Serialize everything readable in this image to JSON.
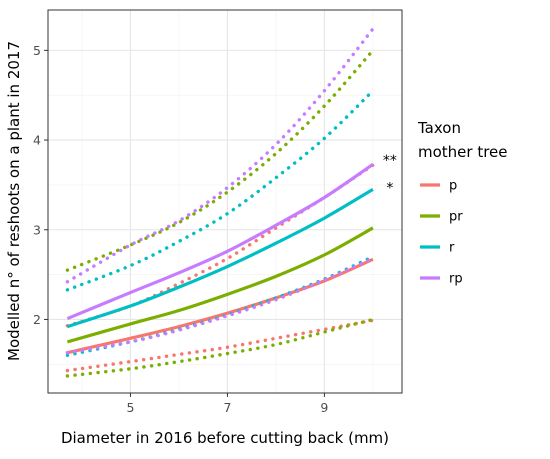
{
  "chart_data": {
    "type": "line",
    "xlabel": "Diameter in 2016 before cutting back (mm)",
    "ylabel": "Modelled n° of reshoots on a plant in 2017",
    "xlim": [
      3.3,
      10.6
    ],
    "ylim": [
      1.18,
      5.45
    ],
    "xticks": [
      5,
      7,
      9
    ],
    "yticks": [
      2,
      3,
      4,
      5
    ],
    "x_minor": [
      4,
      6,
      8,
      10
    ],
    "y_minor": [
      1.5,
      2.5,
      3.5,
      4.5
    ],
    "grid": true,
    "legend": {
      "title_lines": [
        "Taxon",
        "mother tree"
      ],
      "placement": "right"
    },
    "series": [
      {
        "name": "p",
        "color": "#F8766D",
        "fit": {
          "x": [
            3.7,
            5,
            6,
            7,
            8,
            9,
            10
          ],
          "y": [
            1.63,
            1.79,
            1.92,
            2.07,
            2.24,
            2.43,
            2.67
          ]
        },
        "upper": {
          "x": [
            3.7,
            5,
            6,
            7,
            8,
            9,
            10
          ],
          "y": [
            1.93,
            2.15,
            2.4,
            2.68,
            3.02,
            3.36,
            3.72
          ]
        },
        "lower": {
          "x": [
            3.7,
            5,
            6,
            7,
            8,
            9,
            10
          ],
          "y": [
            1.43,
            1.53,
            1.61,
            1.69,
            1.79,
            1.89,
            1.99
          ]
        }
      },
      {
        "name": "pr",
        "color": "#7CAE00",
        "fit": {
          "x": [
            3.7,
            5,
            6,
            7,
            8,
            9,
            10
          ],
          "y": [
            1.75,
            1.95,
            2.1,
            2.28,
            2.48,
            2.72,
            3.02
          ]
        },
        "upper": {
          "x": [
            3.7,
            5,
            6,
            7,
            8,
            9,
            10
          ],
          "y": [
            2.55,
            2.83,
            3.08,
            3.42,
            3.85,
            4.38,
            5.0
          ]
        },
        "lower": {
          "x": [
            3.7,
            5,
            6,
            7,
            8,
            9,
            10
          ],
          "y": [
            1.37,
            1.45,
            1.53,
            1.62,
            1.72,
            1.86,
            2.0
          ]
        }
      },
      {
        "name": "r",
        "color": "#00BFC4",
        "fit": {
          "x": [
            3.7,
            5,
            6,
            7,
            8,
            9,
            10
          ],
          "y": [
            1.92,
            2.15,
            2.36,
            2.59,
            2.85,
            3.13,
            3.45
          ]
        },
        "upper": {
          "x": [
            3.7,
            5,
            6,
            7,
            8,
            9,
            10
          ],
          "y": [
            2.33,
            2.6,
            2.87,
            3.18,
            3.58,
            4.02,
            4.55
          ]
        },
        "lower": {
          "x": [
            3.7,
            5,
            6,
            7,
            8,
            9,
            10
          ],
          "y": [
            1.6,
            1.75,
            1.89,
            2.05,
            2.24,
            2.45,
            2.7
          ]
        }
      },
      {
        "name": "rp",
        "color": "#C77CFF",
        "fit": {
          "x": [
            3.7,
            5,
            6,
            7,
            8,
            9,
            10
          ],
          "y": [
            2.01,
            2.3,
            2.52,
            2.76,
            3.05,
            3.36,
            3.73
          ]
        },
        "upper": {
          "x": [
            3.7,
            5,
            6,
            7,
            8,
            9,
            10
          ],
          "y": [
            2.42,
            2.83,
            3.1,
            3.47,
            3.95,
            4.55,
            5.24
          ]
        },
        "lower": {
          "x": [
            3.7,
            5,
            6,
            7,
            8,
            9,
            10
          ],
          "y": [
            1.63,
            1.75,
            1.88,
            2.04,
            2.22,
            2.44,
            2.68
          ]
        }
      }
    ],
    "annotations": [
      {
        "text": "**",
        "x": 10.35,
        "y": 3.78
      },
      {
        "text": "*",
        "x": 10.35,
        "y": 3.47
      }
    ]
  }
}
